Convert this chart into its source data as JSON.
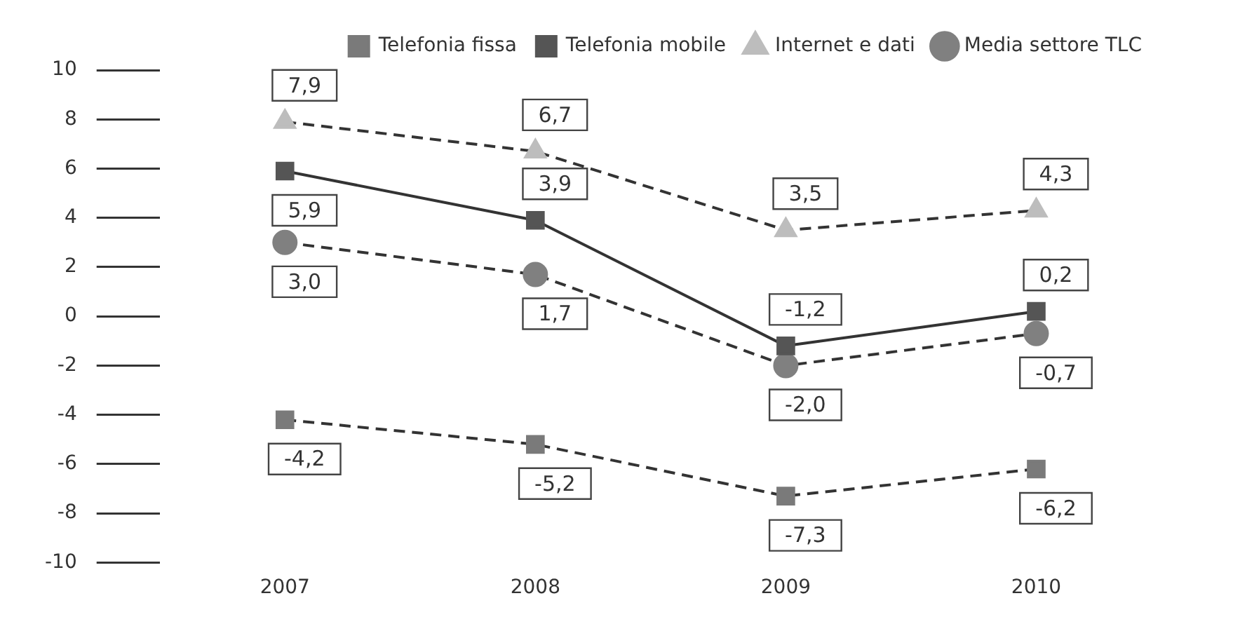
{
  "chart_data": {
    "type": "line",
    "categories": [
      "2007",
      "2008",
      "2009",
      "2010"
    ],
    "series": [
      {
        "name": "Telefonia fissa",
        "color": "#7a7a7a",
        "marker": "square",
        "line_style": "dashed",
        "values": [
          -4.2,
          -5.2,
          -7.3,
          -6.2
        ],
        "value_labels": [
          "-4,2",
          "-5,2",
          "-7,3",
          "-6,2"
        ]
      },
      {
        "name": "Telefonia mobile",
        "color": "#555555",
        "marker": "square",
        "line_style": "solid",
        "values": [
          5.9,
          3.9,
          -1.2,
          0.2
        ],
        "value_labels": [
          "5,9",
          "3,9",
          "-1,2",
          "0,2"
        ]
      },
      {
        "name": "Internet e dati",
        "color": "#bdbdbd",
        "marker": "triangle",
        "line_style": "dashed",
        "values": [
          7.9,
          6.7,
          3.5,
          4.3
        ],
        "value_labels": [
          "7,9",
          "6,7",
          "3,5",
          "4,3"
        ]
      },
      {
        "name": "Media settore TLC",
        "color": "#808080",
        "marker": "circle",
        "line_style": "dashed",
        "values": [
          3.0,
          1.7,
          -2.0,
          -0.7
        ],
        "value_labels": [
          "3,0",
          "1,7",
          "-2,0",
          "-0,7"
        ]
      }
    ],
    "ylim": [
      -10,
      10
    ],
    "yticks": [
      -10,
      -8,
      -6,
      -4,
      -2,
      0,
      2,
      4,
      6,
      8,
      10
    ],
    "grid": false,
    "legend": "top right"
  }
}
